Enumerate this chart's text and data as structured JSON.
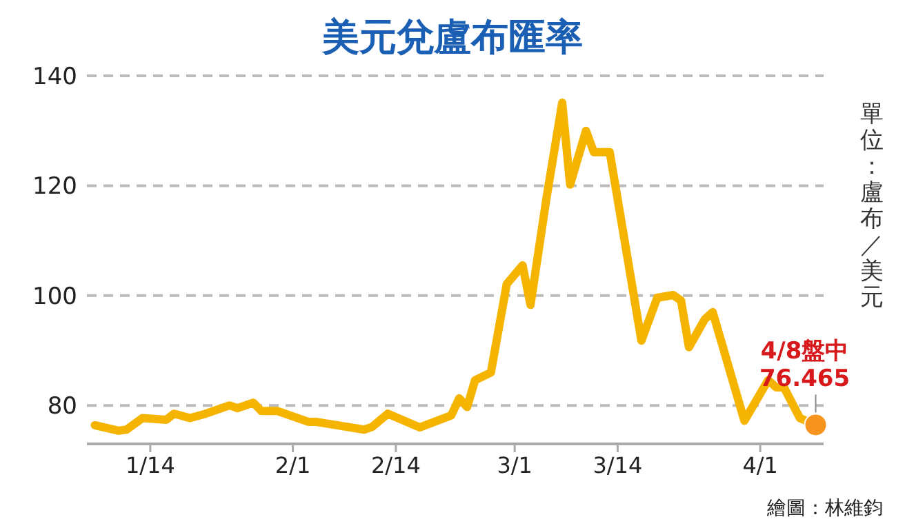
{
  "chart_data": {
    "type": "line",
    "title": "美元兌盧布匯率",
    "ylabel": "單位：盧布／美元",
    "annotations": [
      {
        "text": "4/8盤中\n76.465",
        "x": "--04-08",
        "y": 76.465
      },
      "繪圖：林維鈞"
    ],
    "xlim": [
      "--01-06",
      "--04-09"
    ],
    "xticks": [
      {
        "value": "--01-14",
        "label": "1/14"
      },
      {
        "value": "--02-01",
        "label": "2/1"
      },
      {
        "value": "--02-14",
        "label": "2/14"
      },
      {
        "value": "--03-01",
        "label": "3/1"
      },
      {
        "value": "--03-14",
        "label": "3/14"
      },
      {
        "value": "--04-01",
        "label": "4/1"
      }
    ],
    "ylim": [
      73,
      140
    ],
    "yticks": [
      80,
      100,
      120,
      140
    ],
    "grid": "y",
    "marker": "none",
    "line_style": "solid",
    "series": [
      {
        "color": "#f5b400",
        "x": [
          "--01-07",
          "--01-10",
          "--01-11",
          "--01-13",
          "--01-16",
          "--01-17",
          "--01-19",
          "--01-21",
          "--01-24",
          "--01-25",
          "--01-27",
          "--01-28",
          "--01-30",
          "--02-03",
          "--02-04",
          "--02-10",
          "--02-11",
          "--02-13",
          "--02-17",
          "--02-21",
          "--02-22",
          "--02-23",
          "--02-24",
          "--02-26",
          "--02-28",
          "--03-02",
          "--03-03",
          "--03-05",
          "--03-07",
          "--03-08",
          "--03-10",
          "--03-11",
          "--03-13",
          "--03-17",
          "--03-19",
          "--03-21",
          "--03-22",
          "--03-23",
          "--03-25",
          "--03-26",
          "--03-30",
          "--04-02",
          "--04-03",
          "--04-04",
          "--04-06",
          "--04-08"
        ],
        "values": [
          76.4,
          75.4,
          75.6,
          77.7,
          77.4,
          78.5,
          77.7,
          78.5,
          80,
          79.5,
          80.5,
          79,
          79,
          77,
          77,
          75.6,
          76.1,
          78.5,
          76,
          78.2,
          81.3,
          79.7,
          84.6,
          86,
          102.1,
          105.5,
          98.3,
          117.6,
          135.1,
          120.2,
          130,
          126.1,
          126.1,
          91.8,
          99.6,
          100.1,
          99.1,
          90.6,
          95.7,
          97,
          77.2,
          84.6,
          83.3,
          83.3,
          77.7,
          76.465
        ]
      },
      {
        "type": "scatter",
        "color": "#f7941d",
        "marker": "circle",
        "x": [
          "--04-08"
        ],
        "values": [
          76.465
        ]
      }
    ]
  }
}
